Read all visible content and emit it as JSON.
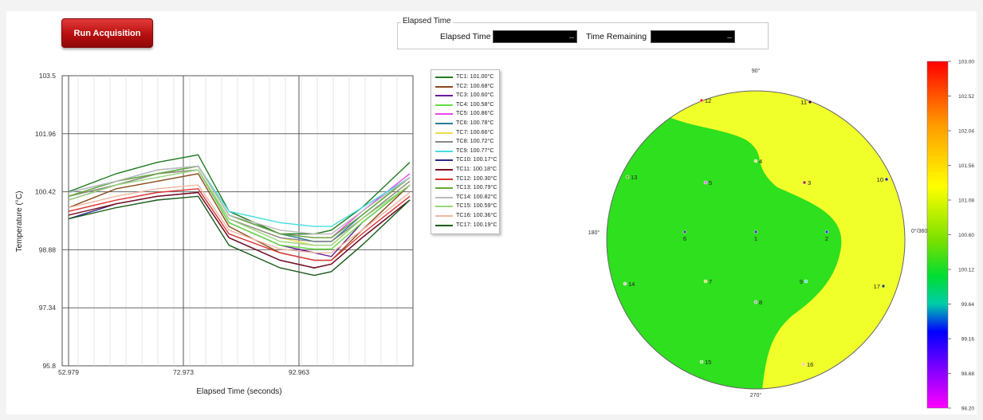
{
  "toolbar": {
    "run_label": "Run Acquisition"
  },
  "elapsed_group": {
    "legend": "Elapsed Time",
    "elapsed_label": "Elapsed Time",
    "elapsed_value": "--",
    "remaining_label": "Time Remaining",
    "remaining_value": "--"
  },
  "chart_data": [
    {
      "type": "line",
      "xlabel": "Elapsed Time (seconds)",
      "ylabel": "Temperature (°C)",
      "ylim": [
        95.8,
        103.5
      ],
      "yticks": [
        "103.5",
        "101.96",
        "100.42",
        "98.88",
        "97.34",
        "95.8"
      ],
      "xticks": [
        "52.979",
        "72.973",
        "92.963"
      ],
      "grid": true,
      "legend_placement": "right",
      "series": [
        {
          "name": "TC1",
          "reading": "101.00°C",
          "color": "#1f7a1f",
          "values": [
            100.42,
            100.9,
            101.2,
            101.4,
            99.9,
            99.3,
            99.3,
            99.4,
            100.0,
            101.2
          ]
        },
        {
          "name": "TC2",
          "reading": "100.68°C",
          "color": "#8a4a1a",
          "values": [
            100.0,
            100.5,
            100.7,
            100.9,
            99.5,
            98.8,
            98.6,
            98.6,
            99.4,
            100.6
          ]
        },
        {
          "name": "TC3",
          "reading": "100.60°C",
          "color": "#6a1a9a",
          "values": [
            100.2,
            100.6,
            100.9,
            101.0,
            99.6,
            99.0,
            98.8,
            98.7,
            99.6,
            100.6
          ]
        },
        {
          "name": "TC4",
          "reading": "100.58°C",
          "color": "#66dd44",
          "values": [
            100.3,
            100.6,
            100.9,
            101.0,
            99.6,
            99.0,
            98.9,
            98.9,
            99.6,
            100.6
          ]
        },
        {
          "name": "TC5",
          "reading": "100.86°C",
          "color": "#ee44ee",
          "values": [
            100.4,
            100.7,
            101.0,
            101.1,
            99.8,
            99.3,
            99.2,
            99.2,
            99.9,
            100.9
          ]
        },
        {
          "name": "TC6",
          "reading": "100.78°C",
          "color": "#2a7a9a",
          "values": [
            100.3,
            100.7,
            100.9,
            101.1,
            99.8,
            99.3,
            99.1,
            99.1,
            99.8,
            100.8
          ]
        },
        {
          "name": "TC7",
          "reading": "100.66°C",
          "color": "#eedd55",
          "values": [
            100.3,
            100.6,
            100.9,
            101.0,
            99.7,
            99.2,
            99.0,
            99.0,
            99.7,
            100.7
          ]
        },
        {
          "name": "TC8",
          "reading": "100.72°C",
          "color": "#888888",
          "values": [
            100.3,
            100.6,
            100.9,
            101.0,
            99.7,
            99.2,
            99.1,
            99.1,
            99.7,
            100.7
          ]
        },
        {
          "name": "TC9",
          "reading": "100.77°C",
          "color": "#44dddd",
          "values": [
            100.4,
            100.7,
            101.0,
            101.1,
            99.9,
            99.6,
            99.5,
            99.5,
            100.0,
            100.8
          ]
        },
        {
          "name": "TC10",
          "reading": "100.17°C",
          "color": "#2a2a8a",
          "values": [
            99.7,
            100.1,
            100.3,
            100.4,
            99.2,
            98.6,
            98.4,
            98.5,
            99.2,
            100.2
          ]
        },
        {
          "name": "TC11",
          "reading": "100.18°C",
          "color": "#7a0f1f",
          "values": [
            99.8,
            100.1,
            100.3,
            100.4,
            99.2,
            98.6,
            98.4,
            98.5,
            99.2,
            100.2
          ]
        },
        {
          "name": "TC12",
          "reading": "100.30°C",
          "color": "#dd3333",
          "values": [
            99.9,
            100.2,
            100.4,
            100.5,
            99.3,
            98.8,
            98.6,
            98.6,
            99.3,
            100.3
          ]
        },
        {
          "name": "TC13",
          "reading": "100.79°C",
          "color": "#66aa33",
          "values": [
            100.3,
            100.7,
            100.9,
            101.1,
            99.8,
            99.3,
            99.2,
            99.2,
            99.8,
            100.8
          ]
        },
        {
          "name": "TC14",
          "reading": "100.82°C",
          "color": "#bbbbbb",
          "values": [
            100.4,
            100.7,
            101.0,
            101.1,
            99.8,
            99.4,
            99.3,
            99.3,
            99.9,
            100.8
          ]
        },
        {
          "name": "TC15",
          "reading": "100.59°C",
          "color": "#9ad67a",
          "values": [
            100.2,
            100.6,
            100.8,
            101.0,
            99.7,
            99.1,
            99.0,
            99.0,
            99.7,
            100.6
          ]
        },
        {
          "name": "TC16",
          "reading": "100.36°C",
          "color": "#f0b8a0",
          "values": [
            100.0,
            100.3,
            100.5,
            100.6,
            99.4,
            98.9,
            98.8,
            98.8,
            99.4,
            100.4
          ]
        },
        {
          "name": "TC17",
          "reading": "100.19°C",
          "color": "#1a5a1a",
          "values": [
            99.7,
            100.0,
            100.2,
            100.3,
            99.0,
            98.4,
            98.2,
            98.3,
            99.0,
            100.2
          ]
        }
      ]
    },
    {
      "type": "heatmap",
      "colorbar_ticks": [
        "103.00",
        "102.52",
        "102.04",
        "101.56",
        "101.08",
        "100.60",
        "100.12",
        "99.64",
        "99.16",
        "98.68",
        "98.20"
      ],
      "angle_labels": {
        "top": "90°",
        "right": "0°/360°",
        "bottom": "270°",
        "left": "180°"
      },
      "sensors": [
        {
          "id": "1",
          "color": "#333399"
        },
        {
          "id": "2",
          "color": "#2233cc"
        },
        {
          "id": "3",
          "color": "#aa2222"
        },
        {
          "id": "4",
          "color": "#dddd88"
        },
        {
          "id": "5",
          "color": "#ee66ee"
        },
        {
          "id": "6",
          "color": "#334466"
        },
        {
          "id": "7",
          "color": "#dddd66"
        },
        {
          "id": "8",
          "color": "#aaaaaa"
        },
        {
          "id": "9",
          "color": "#66dddd"
        },
        {
          "id": "10",
          "color": "#222277"
        },
        {
          "id": "11",
          "color": "#550000"
        },
        {
          "id": "12",
          "color": "#ee2222"
        },
        {
          "id": "13",
          "color": "#66aa33"
        },
        {
          "id": "14",
          "color": "#cccccc"
        },
        {
          "id": "15",
          "color": "#99dd77"
        },
        {
          "id": "16",
          "color": "#ffbbaa"
        },
        {
          "id": "17",
          "color": "#115511"
        }
      ]
    }
  ]
}
